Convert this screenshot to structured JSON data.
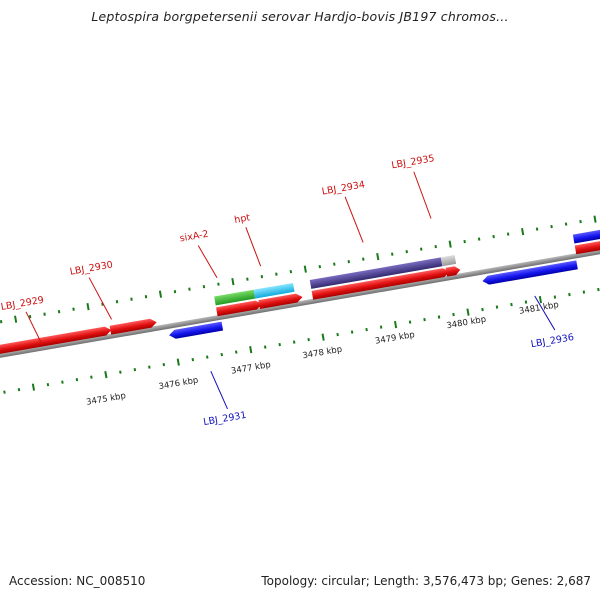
{
  "title": "Leptospira borgpetersenii serovar Hardjo-bovis JB197 chromos...",
  "footer": {
    "accession": "Accession: NC_008510",
    "summary": "Topology: circular; Length: 3,576,473 bp; Genes: 2,687"
  },
  "colors": {
    "backbone": "#8a8a8a",
    "tick": "#1a7a1a",
    "forward_gene": "#dd1111",
    "reverse_gene": "#1a1aee",
    "forward_label": "#cc1111",
    "reverse_label": "#1111bb",
    "cds_green": "#33bb33",
    "cds_cyan": "#22c6ee",
    "cds_purple": "#4a3e8a",
    "cds_grey": "#bbbbbb"
  },
  "kbp_labels": [
    "3475 kbp",
    "3476 kbp",
    "3477 kbp",
    "3478 kbp",
    "3479 kbp",
    "3480 kbp",
    "3481 kbp"
  ],
  "genes": [
    {
      "id": "LBJ_2929",
      "label": "LBJ_2929",
      "strand": "forward"
    },
    {
      "id": "LBJ_2930",
      "label": "LBJ_2930",
      "strand": "forward"
    },
    {
      "id": "sixA-2",
      "label": "sixA-2",
      "strand": "forward"
    },
    {
      "id": "hpt",
      "label": "hpt",
      "strand": "forward"
    },
    {
      "id": "LBJ_2934",
      "label": "LBJ_2934",
      "strand": "forward"
    },
    {
      "id": "LBJ_2935",
      "label": "LBJ_2935",
      "strand": "forward"
    },
    {
      "id": "LBJ_2931",
      "label": "LBJ_2931",
      "strand": "reverse"
    },
    {
      "id": "LBJ_2936",
      "label": "LBJ_2936",
      "strand": "reverse"
    }
  ]
}
